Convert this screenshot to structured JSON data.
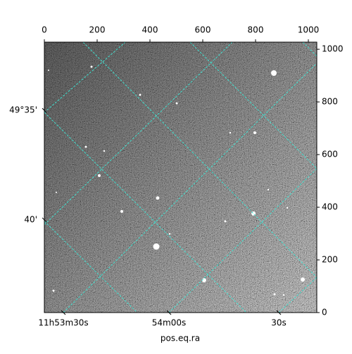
{
  "chart_data": {
    "type": "image",
    "xlabel": "pos.eq.ra",
    "xlim": [
      0,
      1032
    ],
    "ylim": [
      0,
      1027
    ],
    "xticks": [
      0,
      200,
      400,
      600,
      800,
      1000
    ],
    "yticks": [
      0,
      200,
      400,
      600,
      800,
      1000
    ],
    "ra_ticks": [
      {
        "value": 72,
        "label": "11h53m30s"
      },
      {
        "value": 472,
        "label": "54m00s"
      },
      {
        "value": 888,
        "label": "30s"
      }
    ],
    "dec_ticks": [
      {
        "value": 768,
        "label": "49°35'"
      },
      {
        "value": 352,
        "label": "40'"
      }
    ],
    "grid": true,
    "grid_color": "#40e0d0"
  }
}
